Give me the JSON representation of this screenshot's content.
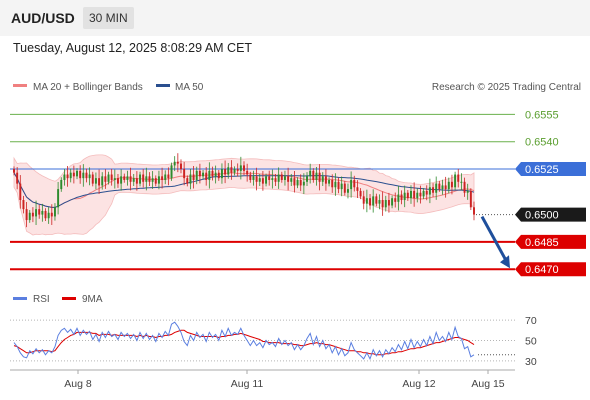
{
  "header": {
    "pair": "AUD/USD",
    "timeframe": "30 MIN"
  },
  "timestamp": "Tuesday, August 12, 2025 8:08:29 AM CET",
  "legend": {
    "bollinger": "MA 20 + Bollinger Bands",
    "ma50": "MA 50",
    "credit": "Research © 2025 Trading Central",
    "rsi": "RSI",
    "rsi_ma": "9MA"
  },
  "colors": {
    "up": "#2e8b2e",
    "down": "#cc2222",
    "bollinger": "#f08080",
    "ma50": "#2a4f8f",
    "resistance": "#6ab04c",
    "pivot": "#3b6fd8",
    "support": "#dd0000",
    "rsi": "#5b7fe0",
    "rsi_ma": "#dd0000"
  },
  "chart_data": [
    {
      "type": "candlestick",
      "x_ticks": [
        "Aug 8",
        "Aug 11",
        "Aug 12",
        "Aug 15"
      ],
      "price_levels": [
        {
          "label": "0.6555",
          "value": 0.6555,
          "kind": "resistance"
        },
        {
          "label": "0.6540",
          "value": 0.654,
          "kind": "resistance"
        },
        {
          "label": "0.6525",
          "value": 0.6525,
          "kind": "pivot"
        },
        {
          "label": "0.6500",
          "value": 0.65,
          "kind": "last"
        },
        {
          "label": "0.6485",
          "value": 0.6485,
          "kind": "support"
        },
        {
          "label": "0.6470",
          "value": 0.647,
          "kind": "support"
        }
      ],
      "ylim": [
        0.6463,
        0.6564
      ],
      "last_price": 0.65,
      "close": [
        0.6523,
        0.6517,
        0.6508,
        0.6503,
        0.6497,
        0.6501,
        0.6499,
        0.6503,
        0.65,
        0.6502,
        0.6498,
        0.6501,
        0.6499,
        0.6504,
        0.6514,
        0.6519,
        0.6522,
        0.652,
        0.6523,
        0.6521,
        0.6524,
        0.652,
        0.6523,
        0.652,
        0.6522,
        0.6517,
        0.652,
        0.6516,
        0.6521,
        0.6518,
        0.6522,
        0.6519,
        0.652,
        0.6517,
        0.6521,
        0.6519,
        0.6521,
        0.6518,
        0.652,
        0.6517,
        0.6522,
        0.6518,
        0.6521,
        0.6518,
        0.652,
        0.6517,
        0.6521,
        0.6519,
        0.6522,
        0.652,
        0.6527,
        0.6529,
        0.6528,
        0.6525,
        0.652,
        0.6517,
        0.6522,
        0.6519,
        0.6524,
        0.6521,
        0.6523,
        0.6519,
        0.6524,
        0.6521,
        0.6523,
        0.652,
        0.6525,
        0.6522,
        0.6526,
        0.6523,
        0.6525,
        0.6524,
        0.6527,
        0.6524,
        0.6522,
        0.6519,
        0.6521,
        0.6518,
        0.652,
        0.6517,
        0.6521,
        0.6519,
        0.652,
        0.6518,
        0.6522,
        0.6519,
        0.6521,
        0.6518,
        0.652,
        0.6516,
        0.6519,
        0.6516,
        0.6518,
        0.6521,
        0.6524,
        0.6519,
        0.6523,
        0.6518,
        0.6521,
        0.6517,
        0.6519,
        0.6515,
        0.6518,
        0.6514,
        0.6517,
        0.6512,
        0.6514,
        0.6519,
        0.6515,
        0.6513,
        0.651,
        0.6506,
        0.6509,
        0.6505,
        0.651,
        0.6506,
        0.6508,
        0.6504,
        0.6508,
        0.6505,
        0.6509,
        0.6507,
        0.6511,
        0.6508,
        0.6512,
        0.6509,
        0.6513,
        0.6509,
        0.6512,
        0.651,
        0.6513,
        0.6511,
        0.6515,
        0.6512,
        0.6517,
        0.6514,
        0.6516,
        0.6514,
        0.6518,
        0.6515,
        0.6522,
        0.6518,
        0.6518,
        0.6512,
        0.6513,
        0.6504,
        0.65
      ]
    },
    {
      "type": "line",
      "name": "RSI",
      "y_ticks": [
        70,
        50,
        30
      ],
      "ylim": [
        25,
        78
      ],
      "rsi": [
        48,
        44,
        38,
        34,
        33,
        40,
        37,
        42,
        38,
        41,
        36,
        40,
        38,
        44,
        55,
        60,
        62,
        58,
        61,
        56,
        62,
        55,
        60,
        56,
        59,
        51,
        56,
        49,
        58,
        53,
        59,
        54,
        56,
        51,
        58,
        54,
        57,
        52,
        56,
        50,
        58,
        52,
        57,
        51,
        55,
        49,
        57,
        53,
        59,
        55,
        66,
        68,
        64,
        58,
        49,
        45,
        55,
        50,
        58,
        53,
        56,
        49,
        58,
        53,
        56,
        50,
        60,
        54,
        62,
        55,
        58,
        56,
        62,
        55,
        50,
        45,
        50,
        45,
        48,
        43,
        50,
        46,
        48,
        44,
        52,
        46,
        50,
        45,
        48,
        41,
        46,
        41,
        45,
        52,
        57,
        46,
        54,
        44,
        50,
        42,
        46,
        38,
        44,
        36,
        42,
        35,
        38,
        48,
        41,
        38,
        35,
        32,
        38,
        32,
        41,
        35,
        40,
        34,
        41,
        37,
        43,
        39,
        46,
        41,
        49,
        42,
        51,
        43,
        49,
        44,
        51,
        45,
        54,
        47,
        58,
        50,
        54,
        49,
        58,
        51,
        63,
        54,
        52,
        42,
        44,
        34,
        36
      ],
      "ma": [
        45,
        44,
        42,
        40,
        38,
        38,
        39,
        40,
        40,
        40,
        40,
        40,
        39,
        40,
        44,
        48,
        51,
        53,
        55,
        56,
        58,
        58,
        58,
        58,
        58,
        57,
        57,
        55,
        56,
        56,
        56,
        55,
        56,
        55,
        55,
        55,
        55,
        55,
        55,
        54,
        55,
        54,
        55,
        54,
        54,
        53,
        54,
        54,
        55,
        55,
        56,
        58,
        59,
        60,
        60,
        58,
        57,
        56,
        55,
        54,
        54,
        54,
        54,
        54,
        54,
        53,
        54,
        54,
        55,
        55,
        56,
        56,
        57,
        56,
        55,
        54,
        53,
        52,
        51,
        49,
        49,
        48,
        48,
        48,
        48,
        47,
        47,
        47,
        47,
        46,
        46,
        45,
        45,
        46,
        47,
        47,
        48,
        47,
        47,
        46,
        46,
        45,
        44,
        43,
        42,
        41,
        40,
        40,
        40,
        39,
        39,
        38,
        38,
        37,
        37,
        36,
        36,
        36,
        37,
        37,
        38,
        38,
        39,
        39,
        40,
        41,
        42,
        42,
        43,
        43,
        44,
        45,
        46,
        47,
        48,
        48,
        49,
        50,
        51,
        52,
        53,
        53,
        52,
        51,
        50,
        48,
        46
      ]
    }
  ]
}
